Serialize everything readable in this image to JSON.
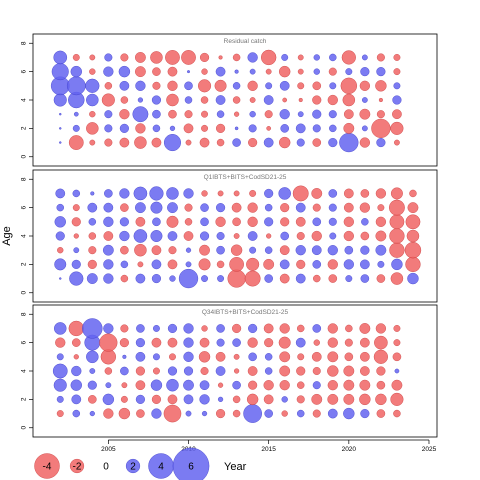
{
  "chart_data": {
    "type": "scatter",
    "ylabel": "Age",
    "xlabel": "Year",
    "x_ticks": [
      2005,
      2010,
      2015,
      2020,
      2025
    ],
    "y_ticks": [
      0,
      2,
      4,
      6,
      8
    ],
    "xlim": [
      2000.3,
      2025.5
    ],
    "ylim": [
      -0.3,
      8.3
    ],
    "colors": {
      "positive": "#6464f0",
      "negative": "#f06464"
    },
    "legend": {
      "labels": [
        "-4",
        "-2",
        "0",
        "2",
        "4",
        "6"
      ],
      "values": [
        -4,
        -2,
        0,
        2,
        4,
        6
      ]
    },
    "panels": [
      {
        "title": "Residual catch",
        "years": [
          2002,
          2003,
          2004,
          2005,
          2006,
          2007,
          2008,
          2009,
          2010,
          2011,
          2012,
          2013,
          2014,
          2015,
          2016,
          2017,
          2018,
          2019,
          2020,
          2021,
          2022,
          2023
        ],
        "ages": [
          1,
          2,
          3,
          4,
          5,
          6,
          7
        ],
        "residuals": {
          "7": [
            2,
            -0.8,
            -0.6,
            1,
            -1,
            -1.5,
            -1.8,
            -2.2,
            -2.2,
            -1.2,
            -0.3,
            -0.9,
            1.4,
            -2.3,
            0.8,
            -0.6,
            0.7,
            0.9,
            -2.1,
            0.6,
            -1,
            -0.8
          ],
          "6": [
            2.6,
            1.6,
            -0.7,
            1.4,
            1.6,
            -1.5,
            -1.1,
            -1.3,
            0.1,
            -0.7,
            1.3,
            0.3,
            0.6,
            -0.6,
            -1.6,
            -0.6,
            0.7,
            -1,
            0.8,
            1.2,
            1.2,
            -0.8
          ],
          "5": [
            2.9,
            2.9,
            2.1,
            -0.9,
            1.3,
            1.4,
            -1,
            -1.4,
            1.1,
            -1.9,
            -1.7,
            0.9,
            -1.4,
            0.8,
            1.3,
            -0.8,
            -1.1,
            0.8,
            -2.5,
            -1.4,
            -1.6,
            0.8
          ],
          "4": [
            1.9,
            2.5,
            1.8,
            -1.9,
            -0.9,
            0.5,
            1.2,
            -1.8,
            0.9,
            -0.9,
            1.3,
            -0.9,
            -0.6,
            1.3,
            -0.4,
            -0.3,
            -1.2,
            -1.4,
            -1.8,
            0.6,
            -0.3,
            1.2
          ],
          "3": [
            0,
            0.4,
            -0.7,
            1,
            -1.4,
            2.4,
            1.1,
            -1.1,
            -1,
            -0.8,
            0.9,
            -0.5,
            0.7,
            -1,
            1.4,
            0.6,
            1.2,
            1,
            -1.3,
            -1.5,
            -1,
            -1.3
          ],
          "2": [
            0,
            0.8,
            -1.8,
            1,
            1.2,
            -1.4,
            0.9,
            0.5,
            -1.3,
            -0.8,
            -1.2,
            0.2,
            1,
            -0.4,
            1.1,
            1.3,
            1,
            0.9,
            -1.5,
            0.6,
            -3,
            -1.9
          ],
          "1": [
            0,
            -2.2,
            -0.6,
            -1,
            -1.3,
            -1.8,
            -1.3,
            2.6,
            -0.6,
            -1.3,
            -0.9,
            1.1,
            -1.2,
            1.3,
            -1.6,
            1,
            -1.1,
            1.2,
            3,
            -1.4,
            1.2,
            -0.6
          ]
        }
      },
      {
        "title": "Q1IBTS+BITS+CodSD21-25",
        "years": [
          2002,
          2003,
          2004,
          2005,
          2006,
          2007,
          2008,
          2009,
          2010,
          2011,
          2012,
          2013,
          2014,
          2015,
          2016,
          2017,
          2018,
          2019,
          2020,
          2021,
          2022,
          2023,
          2024
        ],
        "ages": [
          1,
          2,
          3,
          4,
          5,
          6,
          7
        ],
        "residuals": {
          "7": [
            1.3,
            0.9,
            0.3,
            1.1,
            1.4,
            2,
            2.1,
            1.8,
            1.4,
            -0.7,
            -0.6,
            -0.6,
            -0.8,
            1.2,
            1.8,
            -2.4,
            -1.5,
            1.1,
            -1.3,
            -1.1,
            -1.4,
            -1.7,
            -0.9
          ],
          "6": [
            0.9,
            -0.8,
            1.3,
            1.3,
            -1.1,
            1.5,
            1.7,
            1.5,
            -1,
            1.1,
            1.2,
            -1.3,
            -1.4,
            0.9,
            -1.2,
            1.3,
            -1,
            1,
            -1.3,
            -1.4,
            -0.8,
            -2.4,
            -1.5
          ],
          "5": [
            1.6,
            -1.2,
            0.9,
            1.4,
            1.2,
            -1.3,
            1.1,
            -1.7,
            -0.9,
            1.1,
            -1.4,
            -1.1,
            -1.4,
            1.2,
            -1.2,
            -1.3,
            1.1,
            1,
            -1.4,
            0.9,
            -1.4,
            -2.2,
            -2.2
          ],
          "4": [
            1.2,
            -0.5,
            -0.9,
            -1.3,
            1.4,
            2,
            1.7,
            1.3,
            -1.3,
            1.2,
            1,
            -0.6,
            1.3,
            -0.5,
            1.1,
            -1,
            -1.4,
            0.8,
            -1.4,
            -1.1,
            -1.5,
            -2.3,
            -1.8
          ],
          "3": [
            -0.7,
            0.6,
            -1,
            1.5,
            -1.1,
            -1.8,
            -1.3,
            -1,
            0.5,
            -1.5,
            1.1,
            -1.6,
            0.8,
            0.9,
            -1.3,
            1.4,
            1.3,
            1.4,
            1.1,
            1.2,
            1.5,
            -2.3,
            -2.5
          ],
          "2": [
            1.7,
            1.2,
            -1.2,
            1.4,
            0.9,
            -0.6,
            1.3,
            -1.3,
            0.6,
            -1.7,
            -0.9,
            -2.2,
            -1.9,
            -1.5,
            1.3,
            -1.2,
            1.1,
            -1.4,
            1.4,
            1.3,
            0.8,
            1.6,
            -2.3
          ],
          "1": [
            0,
            2.1,
            1.5,
            1.4,
            -0.9,
            1.3,
            1.2,
            0.7,
            3,
            0.8,
            0.8,
            -2.8,
            -2.4,
            1.1,
            -1.3,
            1.3,
            -0.9,
            -1.1,
            0.8,
            1.1,
            -1.1,
            -1.8,
            1.6
          ]
        }
      },
      {
        "title": "Q34IBTS+BITS+CodSD21-25",
        "years": [
          2002,
          2003,
          2004,
          2005,
          2006,
          2007,
          2008,
          2009,
          2010,
          2011,
          2012,
          2013,
          2014,
          2015,
          2016,
          2017,
          2018,
          2019,
          2020,
          2021,
          2022,
          2023
        ],
        "ages": [
          1,
          2,
          3,
          4,
          5,
          6,
          7
        ],
        "residuals": {
          "7": [
            1.8,
            -2.3,
            3.2,
            1.4,
            -1,
            1.1,
            0.8,
            1.2,
            1.4,
            -0.7,
            1.1,
            -1.2,
            1.2,
            -1.3,
            -1.4,
            -0.9,
            1.1,
            -1.4,
            -0.9,
            -1.5,
            -1.4,
            -0.8
          ],
          "6": [
            -1.4,
            -1.1,
            2.4,
            -2.8,
            -1.2,
            1.2,
            -1.3,
            -1.3,
            1.4,
            -1.3,
            1,
            1.1,
            -1.4,
            -1.2,
            -1.7,
            1.3,
            -0.7,
            -1.4,
            -1,
            -1.3,
            -2,
            -0.8
          ],
          "5": [
            0.8,
            -0.5,
            1.8,
            -2.3,
            0.3,
            1.3,
            0.8,
            -0.8,
            1.4,
            -1.6,
            -1.3,
            -0.6,
            1.1,
            0.9,
            -1.5,
            -0.8,
            -1.3,
            -1.5,
            -1.1,
            -1.3,
            -2.1,
            -1.1
          ],
          "4": [
            2.2,
            1.4,
            0.6,
            -0.9,
            1.1,
            -1.2,
            -0.8,
            1.2,
            1.2,
            -1,
            1.3,
            -0.5,
            -1.3,
            0.9,
            -1.5,
            -1.2,
            -1,
            -1.6,
            -1.5,
            -1.3,
            -1.2,
            0.4
          ],
          "3": [
            1.9,
            1.6,
            1.2,
            0.6,
            -0.6,
            -1.3,
            1.6,
            1.8,
            1.5,
            1.3,
            -0.5,
            1.1,
            -1.2,
            -1.4,
            -1.4,
            -0.9,
            1,
            -1.4,
            -1.5,
            -1.5,
            -1.1,
            -1.5
          ],
          "2": [
            0.8,
            1.3,
            -1.1,
            1.6,
            -0.8,
            1.2,
            -1.2,
            -1.3,
            1.3,
            1.4,
            0.5,
            -0.9,
            -1.6,
            -1.3,
            0.7,
            -1,
            -1.5,
            -1.5,
            -1.5,
            -1.6,
            -1.6,
            -1.9
          ],
          "1": [
            -0.8,
            0.9,
            0.5,
            -1.4,
            -1.6,
            -1.1,
            1.4,
            -2.7,
            0.6,
            0.5,
            -1.2,
            -0.9,
            2.9,
            1.1,
            -0.7,
            0.9,
            -1,
            1.3,
            1.6,
            1.2,
            -1.1,
            -0.9
          ]
        }
      }
    ]
  }
}
